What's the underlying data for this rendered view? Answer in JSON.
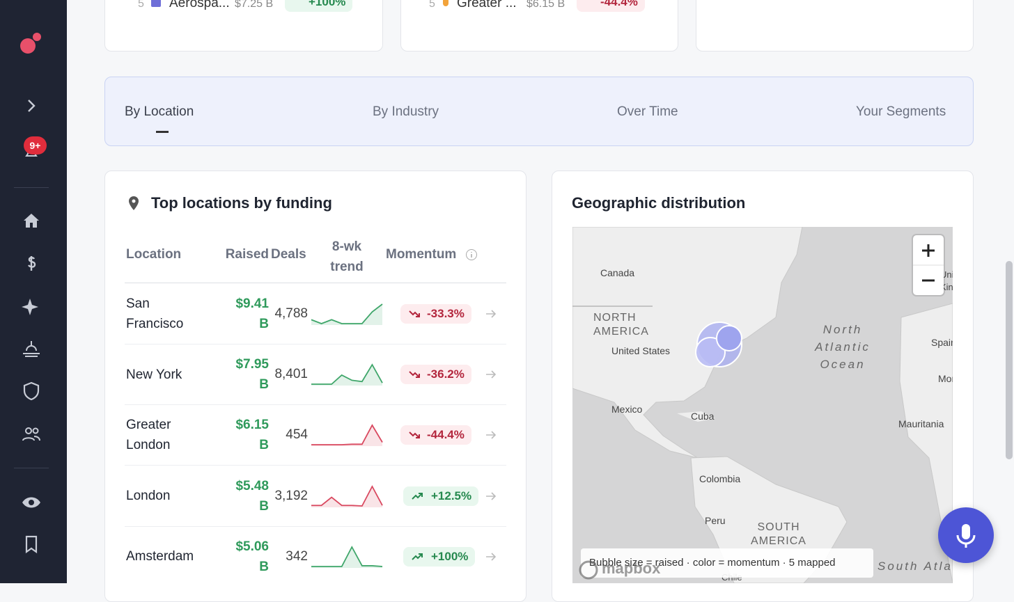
{
  "sidebar": {
    "badge": "9+"
  },
  "top_cards": [
    {
      "rank": "5",
      "name": "Aerospa...",
      "raised": "$7.25 B",
      "change": "+100%"
    },
    {
      "rank": "5",
      "name": "Greater ...",
      "raised": "$6.15 B",
      "change": "-44.4%"
    }
  ],
  "tabs": [
    "By Location",
    "By Industry",
    "Over Time",
    "Your Segments"
  ],
  "locations": {
    "title": "Top locations by funding",
    "columns": [
      "Location",
      "Raised",
      "Deals",
      "8-wk trend",
      "Momentum"
    ],
    "rows": [
      {
        "location": "San Francisco",
        "raised": "$9.41 B",
        "deals": "4,788",
        "trend": [
          2,
          0.5,
          2,
          0.5,
          0.5,
          0.5,
          5,
          8
        ],
        "trend_color": "#3fa66a",
        "momentum": "-33.3%"
      },
      {
        "location": "New York",
        "raised": "$7.95 B",
        "deals": "8,401",
        "trend": [
          0.5,
          0.5,
          0.5,
          4,
          2,
          1.5,
          8,
          1
        ],
        "trend_color": "#3fa66a",
        "momentum": "-36.2%"
      },
      {
        "location": "Greater London",
        "raised": "$6.15 B",
        "deals": "454",
        "trend": [
          0,
          0,
          0,
          0,
          0.2,
          0.2,
          8,
          1
        ],
        "trend_color": "#d9485f",
        "momentum": "-44.4%"
      },
      {
        "location": "London",
        "raised": "$5.48 B",
        "deals": "3,192",
        "trend": [
          1,
          1,
          4,
          1,
          1,
          0.8,
          8,
          1
        ],
        "trend_color": "#d9485f",
        "momentum": "+12.5%"
      },
      {
        "location": "Amsterdam",
        "raised": "$5.06 B",
        "deals": "342",
        "trend": [
          0,
          0,
          0,
          0,
          8,
          0.3,
          0.3,
          0
        ],
        "trend_color": "#3fa66a",
        "momentum": "+100%"
      }
    ]
  },
  "map": {
    "title": "Geographic distribution",
    "labels": [
      "Canada",
      "NORTH AMERICA",
      "United States",
      "Mexico",
      "Cuba",
      "Colombia",
      "Peru",
      "SOUTH AMERICA",
      "North Atlantic Ocean",
      "Spain",
      "Morocco",
      "Mauritania",
      "United Kingdom",
      "South Atlantic",
      "Chile"
    ],
    "legend": "Bubble size = raised · color = momentum · 5 mapped",
    "attribution": "mapbox"
  }
}
